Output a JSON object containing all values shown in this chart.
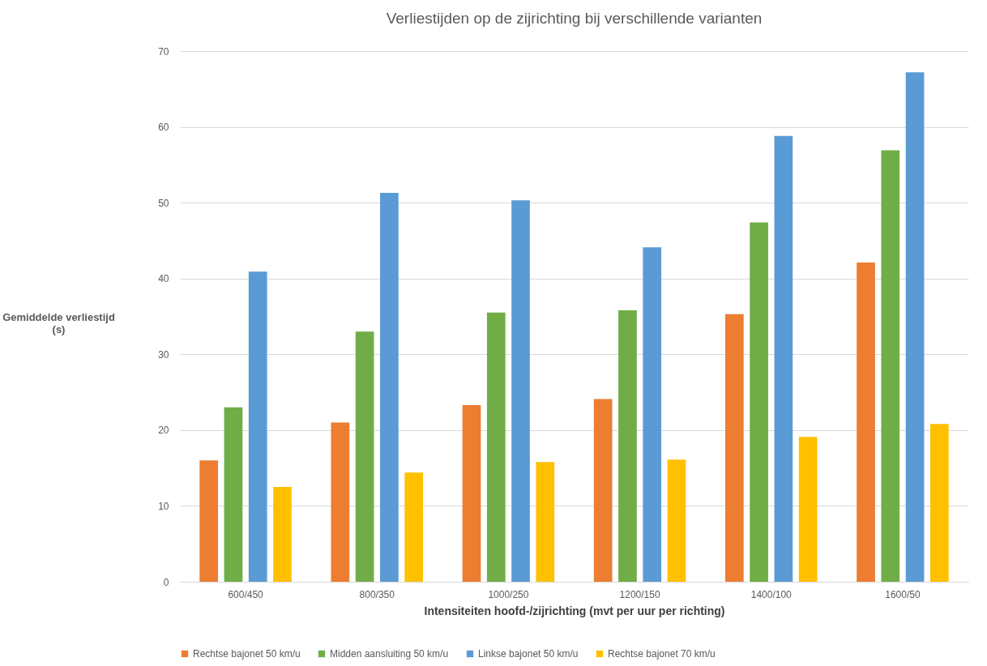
{
  "chart_data": {
    "type": "bar",
    "title": "Verliestijden op de zijrichting bij verschillende varianten",
    "xlabel": "Intensiteiten hoofd-/zijrichting (mvt per uur per richting)",
    "ylabel": "Gemiddelde verliestijd (s)",
    "categories": [
      "600/450",
      "800/350",
      "1000/250",
      "1200/150",
      "1400/100",
      "1600/50"
    ],
    "series": [
      {
        "name": "Rechtse bajonet 50 km/u",
        "color": "#ed7d31",
        "values": [
          16.0,
          21.0,
          23.3,
          24.1,
          35.3,
          42.1
        ]
      },
      {
        "name": "Midden aansluiting 50 km/u",
        "color": "#70ad47",
        "values": [
          23.0,
          33.0,
          35.5,
          35.8,
          47.4,
          56.9
        ]
      },
      {
        "name": "Linkse bajonet 50 km/u",
        "color": "#5b9bd5",
        "values": [
          40.9,
          51.3,
          50.3,
          44.1,
          58.8,
          67.2
        ]
      },
      {
        "name": "Rechtse bajonet 70 km/u",
        "color": "#ffc000",
        "values": [
          12.5,
          14.4,
          15.8,
          16.1,
          19.1,
          20.8
        ]
      }
    ],
    "ylim": [
      0,
      70
    ],
    "yticks": [
      0,
      10,
      20,
      30,
      40,
      50,
      60,
      70
    ],
    "grid": "y",
    "legend": "bottom"
  }
}
